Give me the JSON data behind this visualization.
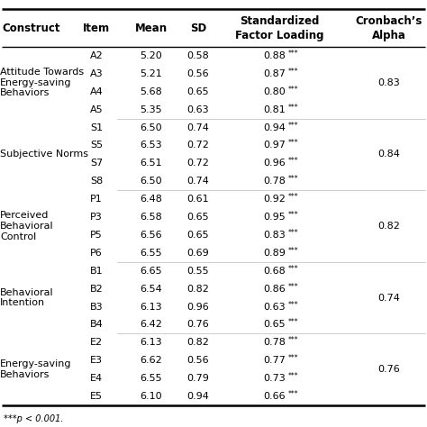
{
  "footnote": "***p < 0.001.",
  "rows": [
    {
      "item": "A2",
      "mean": "5.20",
      "sd": "0.58",
      "sfl": "0.88",
      "stars": "***"
    },
    {
      "item": "A3",
      "mean": "5.21",
      "sd": "0.56",
      "sfl": "0.87",
      "stars": "***"
    },
    {
      "item": "A4",
      "mean": "5.68",
      "sd": "0.65",
      "sfl": "0.80",
      "stars": "***"
    },
    {
      "item": "A5",
      "mean": "5.35",
      "sd": "0.63",
      "sfl": "0.81",
      "stars": "***"
    },
    {
      "item": "S1",
      "mean": "6.50",
      "sd": "0.74",
      "sfl": "0.94",
      "stars": "***"
    },
    {
      "item": "S5",
      "mean": "6.53",
      "sd": "0.72",
      "sfl": "0.97",
      "stars": "***"
    },
    {
      "item": "S7",
      "mean": "6.51",
      "sd": "0.72",
      "sfl": "0.96",
      "stars": "***"
    },
    {
      "item": "S8",
      "mean": "6.50",
      "sd": "0.74",
      "sfl": "0.78",
      "stars": "***"
    },
    {
      "item": "P1",
      "mean": "6.48",
      "sd": "0.61",
      "sfl": "0.92",
      "stars": "***"
    },
    {
      "item": "P3",
      "mean": "6.58",
      "sd": "0.65",
      "sfl": "0.95",
      "stars": "***"
    },
    {
      "item": "P5",
      "mean": "6.56",
      "sd": "0.65",
      "sfl": "0.83",
      "stars": "***"
    },
    {
      "item": "P6",
      "mean": "6.55",
      "sd": "0.69",
      "sfl": "0.89",
      "stars": "***"
    },
    {
      "item": "B1",
      "mean": "6.65",
      "sd": "0.55",
      "sfl": "0.68",
      "stars": "***"
    },
    {
      "item": "B2",
      "mean": "6.54",
      "sd": "0.82",
      "sfl": "0.86",
      "stars": "***"
    },
    {
      "item": "B3",
      "mean": "6.13",
      "sd": "0.96",
      "sfl": "0.63",
      "stars": "***"
    },
    {
      "item": "B4",
      "mean": "6.42",
      "sd": "0.76",
      "sfl": "0.65",
      "stars": "***"
    },
    {
      "item": "E2",
      "mean": "6.13",
      "sd": "0.82",
      "sfl": "0.78",
      "stars": "***"
    },
    {
      "item": "E3",
      "mean": "6.62",
      "sd": "0.56",
      "sfl": "0.77",
      "stars": "***"
    },
    {
      "item": "E4",
      "mean": "6.55",
      "sd": "0.79",
      "sfl": "0.73",
      "stars": "***"
    },
    {
      "item": "E5",
      "mean": "6.10",
      "sd": "0.94",
      "sfl": "0.66",
      "stars": "***"
    }
  ],
  "groups": [
    {
      "name": "Attitude Towards\nEnergy-saving\nBehaviors",
      "start": 0,
      "end": 3,
      "alpha": "0.83"
    },
    {
      "name": "Subjective Norms",
      "start": 4,
      "end": 7,
      "alpha": "0.84"
    },
    {
      "name": "Perceived\nBehavioral\nControl",
      "start": 8,
      "end": 11,
      "alpha": "0.82"
    },
    {
      "name": "Behavioral\nIntention",
      "start": 12,
      "end": 15,
      "alpha": "0.74"
    },
    {
      "name": "Energy-saving\nBehaviors",
      "start": 16,
      "end": 19,
      "alpha": "0.76"
    }
  ],
  "bg_color": "#ffffff",
  "text_color": "#000000",
  "font_size": 8.0,
  "header_font_size": 8.5
}
